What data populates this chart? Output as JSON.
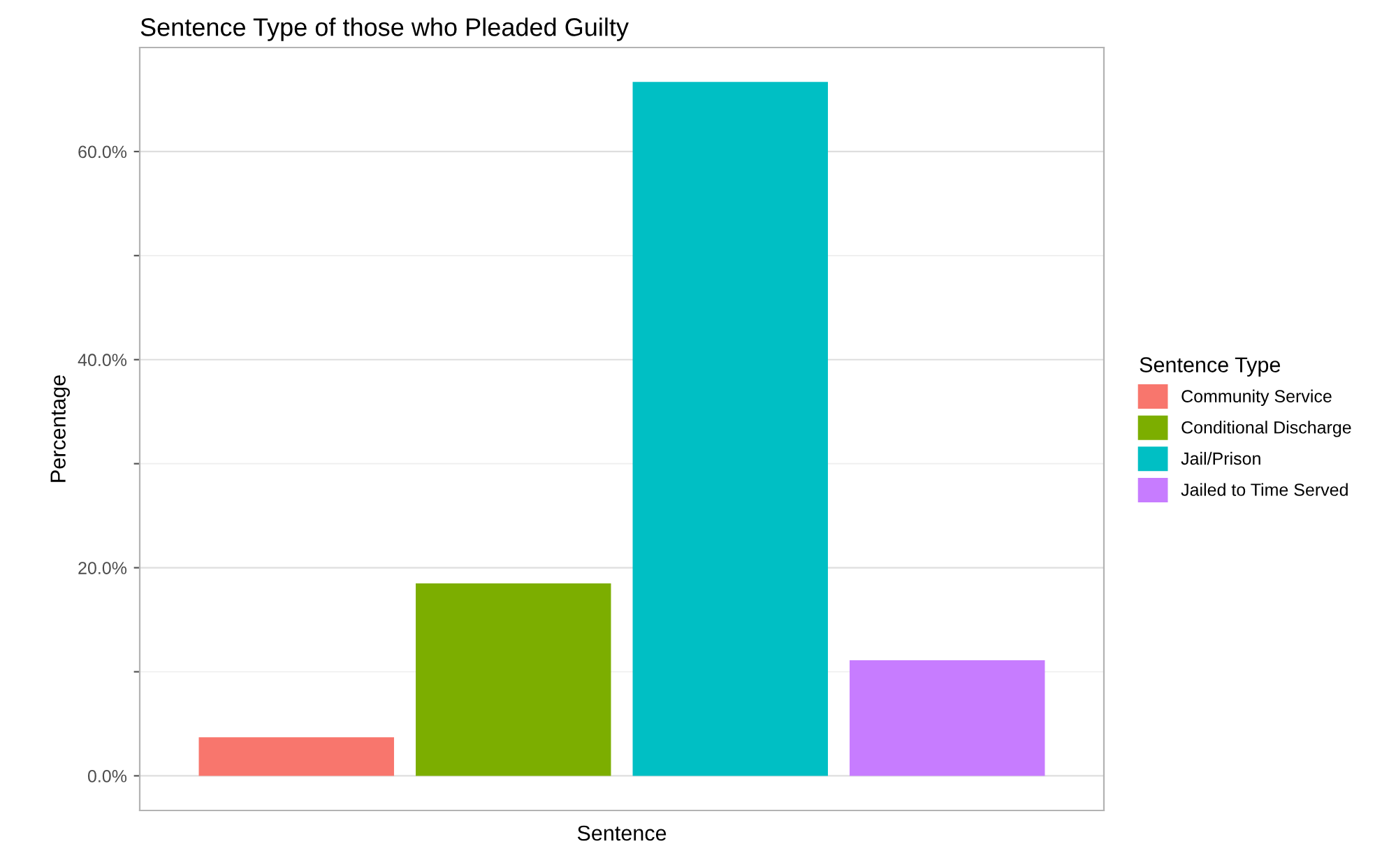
{
  "chart_data": {
    "type": "bar",
    "title": "Sentence Type of those who Pleaded Guilty",
    "xlabel": "Sentence",
    "ylabel": "Percentage",
    "legend_title": "Sentence Type",
    "categories": [
      null
    ],
    "series": [
      {
        "name": "Community Service",
        "color": "#f8766d",
        "values": [
          3.7
        ]
      },
      {
        "name": "Conditional Discharge",
        "color": "#7cae00",
        "values": [
          18.5
        ]
      },
      {
        "name": "Jail/Prison",
        "color": "#00bfc4",
        "values": [
          66.7
        ]
      },
      {
        "name": "Jailed to Time Served",
        "color": "#c77cff",
        "values": [
          11.1
        ]
      }
    ],
    "ylim": [
      -3.33,
      70.0
    ],
    "yticks": [
      {
        "value": 0,
        "label": "0.0%"
      },
      {
        "value": 10,
        "label": null
      },
      {
        "value": 20,
        "label": "20.0%"
      },
      {
        "value": 30,
        "label": null
      },
      {
        "value": 40,
        "label": "40.0%"
      },
      {
        "value": 50,
        "label": null
      },
      {
        "value": 60,
        "label": "60.0%"
      }
    ],
    "grid": "y",
    "legend": "right"
  }
}
